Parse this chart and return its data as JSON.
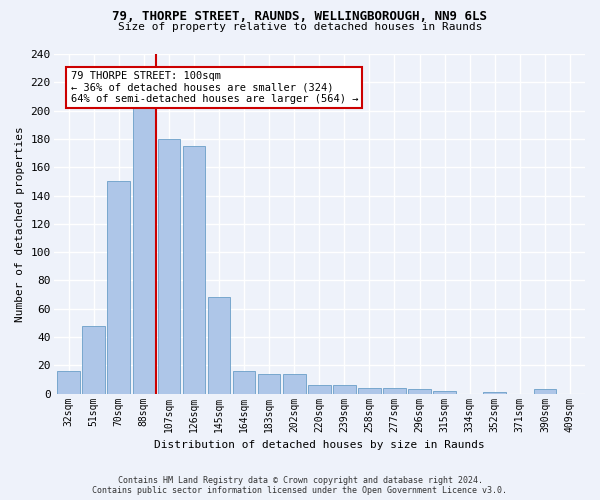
{
  "title_line1": "79, THORPE STREET, RAUNDS, WELLINGBOROUGH, NN9 6LS",
  "title_line2": "Size of property relative to detached houses in Raunds",
  "xlabel": "Distribution of detached houses by size in Raunds",
  "ylabel": "Number of detached properties",
  "categories": [
    "32sqm",
    "51sqm",
    "70sqm",
    "88sqm",
    "107sqm",
    "126sqm",
    "145sqm",
    "164sqm",
    "183sqm",
    "202sqm",
    "220sqm",
    "239sqm",
    "258sqm",
    "277sqm",
    "296sqm",
    "315sqm",
    "334sqm",
    "352sqm",
    "371sqm",
    "390sqm",
    "409sqm"
  ],
  "values": [
    16,
    48,
    150,
    202,
    180,
    175,
    68,
    16,
    14,
    14,
    6,
    6,
    4,
    4,
    3,
    2,
    0,
    1,
    0,
    3,
    0
  ],
  "bar_color": "#aec6e8",
  "bar_edge_color": "#6a9fc8",
  "annotation_line1": "79 THORPE STREET: 100sqm",
  "annotation_line2": "← 36% of detached houses are smaller (324)",
  "annotation_line3": "64% of semi-detached houses are larger (564) →",
  "vline_x_index": 3.5,
  "annotation_box_color": "#ffffff",
  "annotation_box_edge_color": "#cc0000",
  "vline_color": "#cc0000",
  "ylim": [
    0,
    240
  ],
  "yticks": [
    0,
    20,
    40,
    60,
    80,
    100,
    120,
    140,
    160,
    180,
    200,
    220,
    240
  ],
  "footer_line1": "Contains HM Land Registry data © Crown copyright and database right 2024.",
  "footer_line2": "Contains public sector information licensed under the Open Government Licence v3.0.",
  "bg_color": "#eef2fa",
  "grid_color": "#ffffff",
  "title1_fontsize": 9.0,
  "title2_fontsize": 8.0,
  "bar_width": 0.9
}
